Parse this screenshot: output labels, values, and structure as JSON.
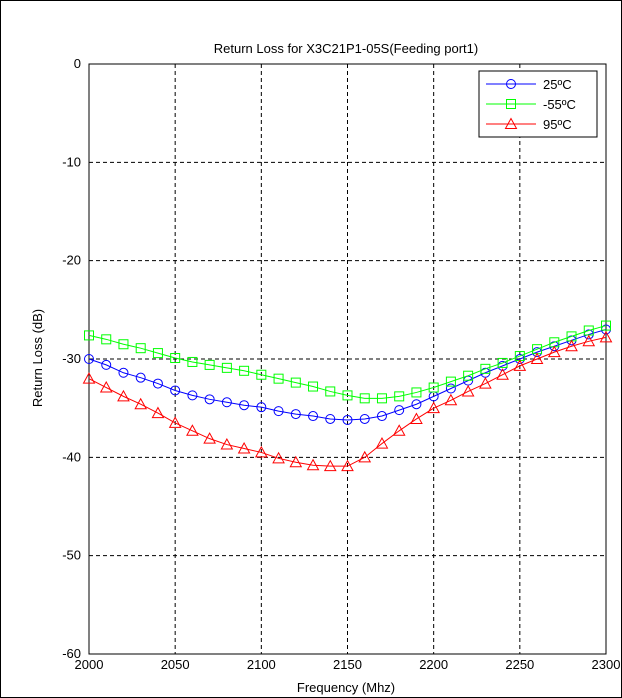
{
  "chart_data": {
    "type": "line",
    "title": "Return Loss for X3C21P1-05S(Feeding port1)",
    "xlabel": "Frequency (Mhz)",
    "ylabel": "Return Loss (dB)",
    "xlim": [
      2000,
      2300
    ],
    "ylim": [
      -60,
      0
    ],
    "xticks": [
      2000,
      2050,
      2100,
      2150,
      2200,
      2250,
      2300
    ],
    "yticks": [
      0,
      -10,
      -20,
      -30,
      -40,
      -50,
      -60
    ],
    "grid": true,
    "grid_style": "dashed",
    "legend_position": "top-right",
    "x": [
      2000,
      2010,
      2020,
      2030,
      2040,
      2050,
      2060,
      2070,
      2080,
      2090,
      2100,
      2110,
      2120,
      2130,
      2140,
      2150,
      2160,
      2170,
      2180,
      2190,
      2200,
      2210,
      2220,
      2230,
      2240,
      2250,
      2260,
      2270,
      2280,
      2290,
      2300
    ],
    "series": [
      {
        "name": "25ºC",
        "color": "#0000ff",
        "marker": "circle",
        "values": [
          -30.0,
          -30.6,
          -31.4,
          -31.9,
          -32.5,
          -33.2,
          -33.7,
          -34.1,
          -34.4,
          -34.7,
          -34.9,
          -35.3,
          -35.6,
          -35.8,
          -36.1,
          -36.2,
          -36.1,
          -35.8,
          -35.2,
          -34.6,
          -33.8,
          -33.0,
          -32.2,
          -31.4,
          -30.7,
          -30.0,
          -29.3,
          -28.7,
          -28.1,
          -27.5,
          -27.0
        ]
      },
      {
        "name": "-55ºC",
        "color": "#00ff00",
        "marker": "square",
        "values": [
          -27.6,
          -28.0,
          -28.5,
          -28.9,
          -29.4,
          -29.9,
          -30.3,
          -30.6,
          -30.9,
          -31.2,
          -31.6,
          -32.0,
          -32.4,
          -32.8,
          -33.3,
          -33.7,
          -34.0,
          -34.0,
          -33.8,
          -33.4,
          -32.9,
          -32.3,
          -31.7,
          -31.0,
          -30.4,
          -29.7,
          -29.0,
          -28.3,
          -27.7,
          -27.1,
          -26.6
        ]
      },
      {
        "name": "95ºC",
        "color": "#ff0000",
        "marker": "triangle",
        "values": [
          -32.0,
          -32.9,
          -33.8,
          -34.6,
          -35.5,
          -36.5,
          -37.3,
          -38.1,
          -38.7,
          -39.1,
          -39.5,
          -40.1,
          -40.5,
          -40.8,
          -40.9,
          -40.9,
          -40.0,
          -38.6,
          -37.3,
          -36.1,
          -35.0,
          -34.2,
          -33.3,
          -32.5,
          -31.6,
          -30.7,
          -30.0,
          -29.3,
          -28.7,
          -28.2,
          -27.8
        ]
      }
    ]
  }
}
